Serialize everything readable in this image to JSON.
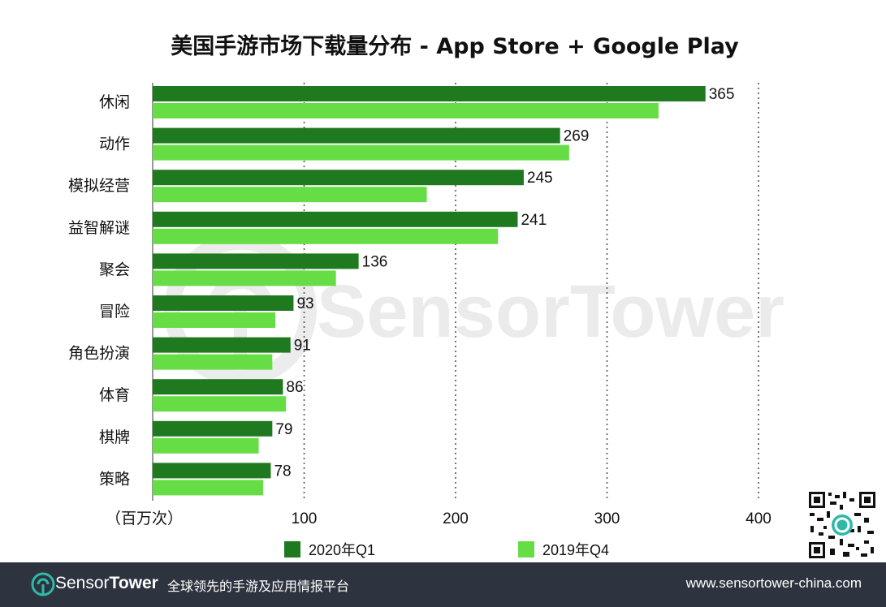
{
  "chart_data": {
    "type": "bar",
    "orientation": "horizontal",
    "title": "美国手游市场下载量分布 - App Store + Google Play",
    "unit": "（百万次）",
    "categories": [
      "休闲",
      "动作",
      "模拟经营",
      "益智解谜",
      "聚会",
      "冒险",
      "角色扮演",
      "体育",
      "棋牌",
      "策略"
    ],
    "series": [
      {
        "name": "2020年Q1",
        "color": "#1f7a1f",
        "values": [
          365,
          269,
          245,
          241,
          136,
          93,
          91,
          86,
          79,
          78
        ],
        "labels": [
          "365",
          "269",
          "245",
          "241",
          "136",
          "93",
          "91",
          "86",
          "79",
          "78"
        ]
      },
      {
        "name": "2019年Q4",
        "color": "#66dd44",
        "values": [
          334,
          275,
          181,
          228,
          121,
          81,
          79,
          88,
          70,
          73
        ]
      }
    ],
    "xlim": [
      0,
      400
    ],
    "xticks": [
      100,
      200,
      300,
      400
    ],
    "xtick_labels": [
      "100",
      "200",
      "300",
      "400"
    ],
    "grid": "vertical dotted",
    "legend_position": "bottom"
  },
  "watermark": {
    "text": "SensorTower"
  },
  "footer": {
    "brand_sensor": "Sensor",
    "brand_tower": "Tower",
    "slogan": "全球领先的手游及应用情报平台",
    "url": "www.sensortower-china.com",
    "background": "#2e343f",
    "accent": "#2fb8a8"
  },
  "qr_icon": "qr-code-icon"
}
